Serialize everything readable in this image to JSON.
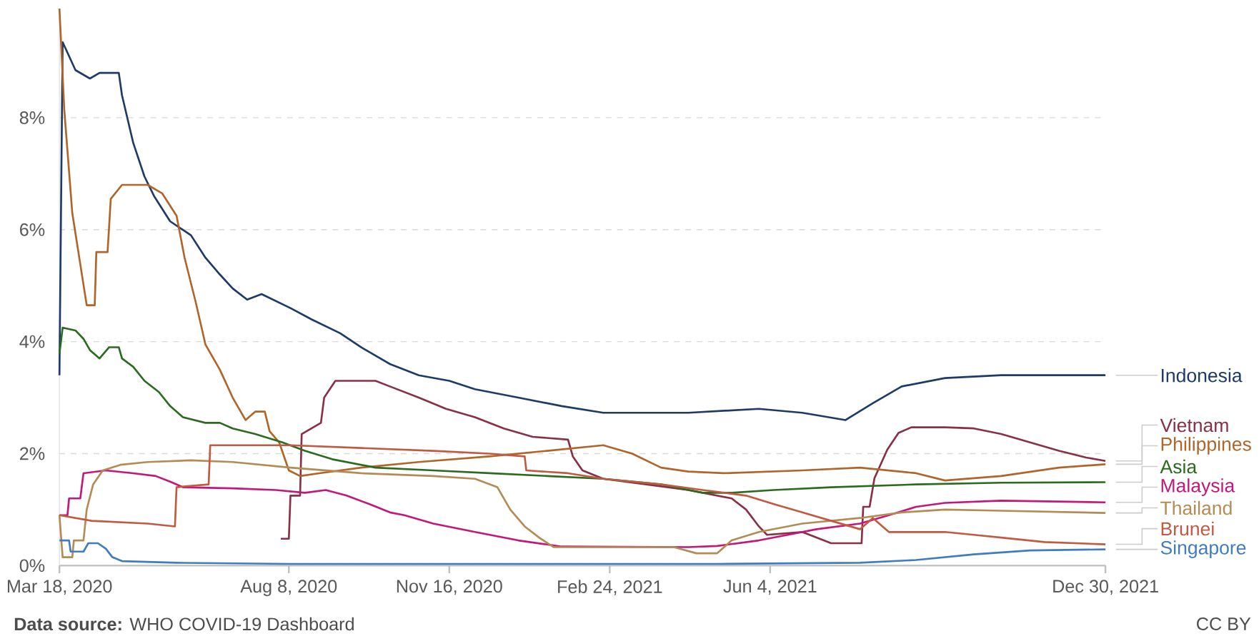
{
  "chart_data": {
    "type": "line",
    "xlim": [
      "2020-03-18",
      "2021-12-30"
    ],
    "xticks": [
      {
        "value": "2020-03-18",
        "label": "Mar 18, 2020"
      },
      {
        "value": "2020-08-08",
        "label": "Aug 8, 2020"
      },
      {
        "value": "2020-11-16",
        "label": "Nov 16, 2020"
      },
      {
        "value": "2021-02-24",
        "label": "Feb 24, 2021"
      },
      {
        "value": "2021-06-04",
        "label": "Jun 4, 2021"
      },
      {
        "value": "2021-12-30",
        "label": "Dec 30, 2021"
      }
    ],
    "yticks": [
      {
        "value": 0,
        "label": "0%"
      },
      {
        "value": 2,
        "label": "2%"
      },
      {
        "value": 4,
        "label": "4%"
      },
      {
        "value": 6,
        "label": "6%"
      },
      {
        "value": 8,
        "label": "8%"
      }
    ],
    "ylim": [
      0,
      9.95
    ],
    "grid": "y",
    "series": [
      {
        "name": "Indonesia",
        "color": "#1e3a66",
        "x": [
          "2020-03-18",
          "2020-03-20",
          "2020-03-28",
          "2020-04-06",
          "2020-04-12",
          "2020-04-24",
          "2020-04-26",
          "2020-05-03",
          "2020-05-10",
          "2020-05-16",
          "2020-05-26",
          "2020-06-08",
          "2020-06-17",
          "2020-06-26",
          "2020-07-04",
          "2020-07-13",
          "2020-07-22",
          "2020-08-09",
          "2020-08-22",
          "2020-09-09",
          "2020-09-22",
          "2020-10-10",
          "2020-10-28",
          "2020-11-16",
          "2020-12-02",
          "2020-12-29",
          "2021-01-25",
          "2021-02-20",
          "2021-04-14",
          "2021-05-28",
          "2021-06-24",
          "2021-07-21",
          "2021-08-07",
          "2021-08-25",
          "2021-09-21",
          "2021-10-26",
          "2021-12-30"
        ],
        "values": [
          3.4,
          9.35,
          8.85,
          8.7,
          8.8,
          8.8,
          8.4,
          7.55,
          6.95,
          6.6,
          6.15,
          5.9,
          5.5,
          5.2,
          4.95,
          4.75,
          4.85,
          4.6,
          4.4,
          4.15,
          3.9,
          3.6,
          3.4,
          3.3,
          3.15,
          3.0,
          2.85,
          2.73,
          2.73,
          2.8,
          2.73,
          2.6,
          2.9,
          3.2,
          3.35,
          3.4,
          3.4
        ]
      },
      {
        "name": "Vietnam",
        "color": "#883045",
        "x": [
          "2020-08-03",
          "2020-08-08",
          "2020-08-09",
          "2020-08-15",
          "2020-08-16",
          "2020-08-28",
          "2020-08-30",
          "2020-09-06",
          "2020-10-01",
          "2020-10-10",
          "2020-10-28",
          "2020-11-14",
          "2020-12-02",
          "2020-12-20",
          "2021-01-07",
          "2021-01-29",
          "2021-02-01",
          "2021-02-07",
          "2021-02-20",
          "2021-03-19",
          "2021-04-14",
          "2021-05-11",
          "2021-05-20",
          "2021-05-28",
          "2021-06-02",
          "2021-06-24",
          "2021-07-12",
          "2021-07-31",
          "2021-08-01",
          "2021-08-05",
          "2021-08-08",
          "2021-08-16",
          "2021-08-23",
          "2021-08-31",
          "2021-09-21",
          "2021-10-09",
          "2021-10-26",
          "2021-11-13",
          "2021-12-01",
          "2021-12-18",
          "2021-12-30"
        ],
        "values": [
          0.48,
          0.48,
          1.25,
          1.25,
          2.35,
          2.55,
          3.0,
          3.3,
          3.3,
          3.2,
          3.0,
          2.8,
          2.65,
          2.45,
          2.3,
          2.25,
          1.95,
          1.7,
          1.55,
          1.45,
          1.35,
          1.2,
          1.0,
          0.7,
          0.55,
          0.6,
          0.4,
          0.4,
          1.05,
          1.05,
          1.56,
          2.07,
          2.37,
          2.47,
          2.47,
          2.45,
          2.35,
          2.2,
          2.05,
          1.93,
          1.87
        ]
      },
      {
        "name": "Philippines",
        "color": "#b0652a",
        "x": [
          "2020-03-18",
          "2020-03-21",
          "2020-03-26",
          "2020-04-04",
          "2020-04-09",
          "2020-04-10",
          "2020-04-17",
          "2020-04-19",
          "2020-04-26",
          "2020-05-12",
          "2020-05-21",
          "2020-05-30",
          "2020-06-04",
          "2020-06-11",
          "2020-06-17",
          "2020-06-26",
          "2020-07-04",
          "2020-07-12",
          "2020-07-18",
          "2020-07-24",
          "2020-07-27",
          "2020-08-02",
          "2020-08-08",
          "2020-08-15",
          "2020-08-27",
          "2020-09-22",
          "2020-10-28",
          "2020-12-11",
          "2021-01-16",
          "2021-02-20",
          "2021-03-10",
          "2021-03-28",
          "2021-04-14",
          "2021-05-06",
          "2021-06-24",
          "2021-07-30",
          "2021-09-03",
          "2021-09-21",
          "2021-10-26",
          "2021-12-01",
          "2021-12-30"
        ],
        "values": [
          9.95,
          8.15,
          6.3,
          4.65,
          4.65,
          5.6,
          5.6,
          6.55,
          6.8,
          6.8,
          6.65,
          6.25,
          5.5,
          4.7,
          3.95,
          3.5,
          3.0,
          2.6,
          2.75,
          2.75,
          2.4,
          2.2,
          1.7,
          1.6,
          1.65,
          1.75,
          1.85,
          1.95,
          2.05,
          2.15,
          2.0,
          1.75,
          1.68,
          1.65,
          1.7,
          1.75,
          1.65,
          1.52,
          1.6,
          1.75,
          1.81
        ]
      },
      {
        "name": "Asia",
        "color": "#2c6a1f",
        "x": [
          "2020-03-18",
          "2020-03-20",
          "2020-03-28",
          "2020-04-02",
          "2020-04-06",
          "2020-04-12",
          "2020-04-18",
          "2020-04-24",
          "2020-04-26",
          "2020-05-03",
          "2020-05-10",
          "2020-05-19",
          "2020-05-26",
          "2020-06-03",
          "2020-06-17",
          "2020-06-26",
          "2020-07-04",
          "2020-07-18",
          "2020-08-04",
          "2020-08-18",
          "2020-09-04",
          "2020-10-01",
          "2020-11-06",
          "2020-12-11",
          "2021-01-16",
          "2021-02-20",
          "2021-03-28",
          "2021-04-23",
          "2021-05-11",
          "2021-06-06",
          "2021-07-12",
          "2021-09-03",
          "2021-10-26",
          "2021-12-30"
        ],
        "values": [
          3.78,
          4.25,
          4.2,
          4.05,
          3.85,
          3.7,
          3.9,
          3.9,
          3.7,
          3.55,
          3.3,
          3.1,
          2.85,
          2.65,
          2.55,
          2.55,
          2.45,
          2.35,
          2.2,
          2.05,
          1.9,
          1.75,
          1.7,
          1.65,
          1.6,
          1.55,
          1.45,
          1.3,
          1.3,
          1.35,
          1.4,
          1.45,
          1.48,
          1.49
        ]
      },
      {
        "name": "Malaysia",
        "color": "#c2187a",
        "x": [
          "2020-03-18",
          "2020-03-23",
          "2020-03-24",
          "2020-03-31",
          "2020-04-02",
          "2020-04-16",
          "2020-05-03",
          "2020-05-17",
          "2020-05-26",
          "2020-06-03",
          "2020-07-04",
          "2020-07-31",
          "2020-08-18",
          "2020-08-31",
          "2020-09-13",
          "2020-09-27",
          "2020-10-10",
          "2020-10-19",
          "2020-11-06",
          "2020-12-02",
          "2020-12-29",
          "2021-01-25",
          "2021-04-14",
          "2021-05-02",
          "2021-05-28",
          "2021-06-15",
          "2021-07-03",
          "2021-07-30",
          "2021-08-17",
          "2021-09-03",
          "2021-09-21",
          "2021-10-26",
          "2021-12-30"
        ],
        "values": [
          0.9,
          0.9,
          1.2,
          1.2,
          1.65,
          1.7,
          1.65,
          1.6,
          1.5,
          1.4,
          1.38,
          1.35,
          1.3,
          1.35,
          1.25,
          1.1,
          0.95,
          0.9,
          0.75,
          0.6,
          0.45,
          0.34,
          0.33,
          0.35,
          0.45,
          0.55,
          0.65,
          0.75,
          0.9,
          1.05,
          1.12,
          1.16,
          1.13
        ]
      },
      {
        "name": "Thailand",
        "color": "#b38b55",
        "x": [
          "2020-03-18",
          "2020-03-20",
          "2020-03-26",
          "2020-03-27",
          "2020-04-02",
          "2020-04-04",
          "2020-04-08",
          "2020-04-14",
          "2020-04-25",
          "2020-05-12",
          "2020-06-08",
          "2020-07-04",
          "2020-08-09",
          "2020-09-22",
          "2020-11-06",
          "2020-12-02",
          "2020-12-16",
          "2020-12-24",
          "2021-01-02",
          "2021-01-11",
          "2021-01-20",
          "2021-04-05",
          "2021-04-19",
          "2021-05-02",
          "2021-05-11",
          "2021-05-28",
          "2021-06-24",
          "2021-07-30",
          "2021-08-25",
          "2021-09-21",
          "2021-10-26",
          "2021-12-30"
        ],
        "values": [
          0.9,
          0.15,
          0.15,
          0.45,
          0.45,
          1.0,
          1.45,
          1.7,
          1.8,
          1.85,
          1.88,
          1.85,
          1.75,
          1.65,
          1.6,
          1.55,
          1.4,
          1.0,
          0.7,
          0.5,
          0.33,
          0.33,
          0.22,
          0.22,
          0.45,
          0.6,
          0.75,
          0.85,
          0.95,
          1.0,
          0.98,
          0.94
        ]
      },
      {
        "name": "Brunei",
        "color": "#c05a42",
        "x": [
          "2020-03-18",
          "2020-04-07",
          "2020-05-12",
          "2020-05-29",
          "2020-05-30",
          "2020-06-19",
          "2020-06-20",
          "2020-08-09",
          "2020-09-22",
          "2020-11-06",
          "2020-12-11",
          "2021-01-02",
          "2021-01-03",
          "2021-01-29",
          "2021-02-20",
          "2021-03-28",
          "2021-04-23",
          "2021-05-20",
          "2021-06-06",
          "2021-06-24",
          "2021-07-12",
          "2021-07-30",
          "2021-08-07",
          "2021-08-17",
          "2021-09-21",
          "2021-10-09",
          "2021-10-26",
          "2021-11-22",
          "2021-12-30"
        ],
        "values": [
          0.9,
          0.8,
          0.75,
          0.7,
          1.4,
          1.45,
          2.15,
          2.15,
          2.1,
          2.05,
          2.0,
          1.95,
          1.7,
          1.65,
          1.55,
          1.45,
          1.35,
          1.25,
          1.1,
          0.95,
          0.8,
          0.65,
          0.85,
          0.6,
          0.6,
          0.55,
          0.5,
          0.42,
          0.38
        ]
      },
      {
        "name": "Singapore",
        "color": "#3f7cc0",
        "x": [
          "2020-03-18",
          "2020-03-24",
          "2020-03-25",
          "2020-04-02",
          "2020-04-05",
          "2020-04-11",
          "2020-04-16",
          "2020-04-20",
          "2020-04-26",
          "2020-05-30",
          "2020-08-09",
          "2021-05-02",
          "2021-07-30",
          "2021-09-03",
          "2021-10-09",
          "2021-11-13",
          "2021-12-30"
        ],
        "values": [
          0.45,
          0.45,
          0.25,
          0.25,
          0.4,
          0.4,
          0.3,
          0.15,
          0.08,
          0.05,
          0.03,
          0.03,
          0.05,
          0.1,
          0.2,
          0.27,
          0.29
        ]
      }
    ],
    "annotations": [
      "**Data source:** WHO COVID-19 Dashboard",
      "CC BY"
    ]
  }
}
